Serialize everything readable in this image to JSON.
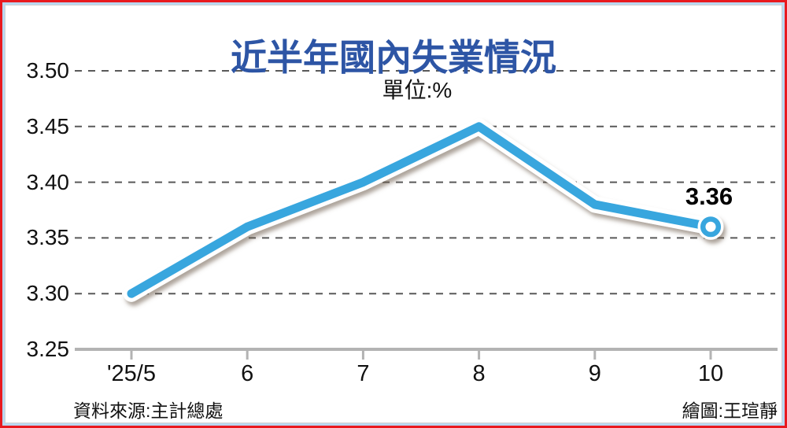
{
  "page": {
    "title": "近半年國內失業情況",
    "footer": {
      "source": "資料來源:主計總處",
      "credit": "繪圖:王瑄靜"
    }
  },
  "chart_data": {
    "type": "line",
    "title": "近半年國內失業情況",
    "unit_label": "單位:%",
    "categories": [
      "'25/5",
      "6",
      "7",
      "8",
      "9",
      "10"
    ],
    "values": [
      3.3,
      3.36,
      3.4,
      3.45,
      3.38,
      3.36
    ],
    "end_label": "3.36",
    "ylim": [
      3.25,
      3.5
    ],
    "ytick_labels": [
      "3.50",
      "3.45",
      "3.40",
      "3.35",
      "3.30",
      "3.25"
    ],
    "grid": "horizontal-dashed",
    "legend": "none",
    "marker": "open-circle-on-last-point"
  },
  "colors": {
    "border_outer": "#e8191f",
    "border_inner": "#b9d8f1",
    "title": "#2d55a5",
    "line": "#38a6de",
    "casing": "#ffffff",
    "grid": "#595959",
    "axis": "#b3b3b3",
    "text": "#111111"
  }
}
